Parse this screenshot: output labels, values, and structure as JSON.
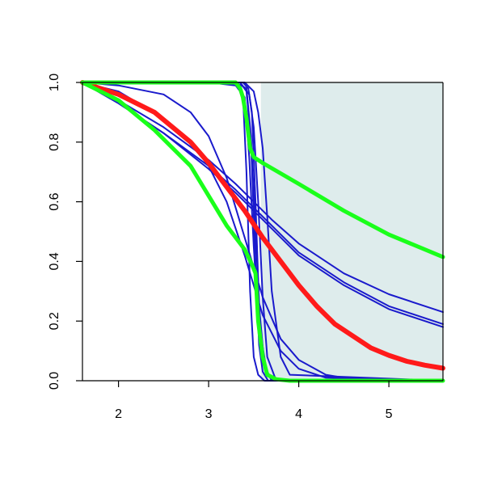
{
  "chart_data": {
    "type": "line",
    "title": "",
    "xlabel": "",
    "ylabel": "",
    "xlim": [
      1.6,
      5.6
    ],
    "ylim": [
      0,
      1
    ],
    "x_ticks": [
      2,
      3,
      4,
      5
    ],
    "y_ticks": [
      0.0,
      0.2,
      0.4,
      0.6,
      0.8,
      1.0
    ],
    "x_tick_labels": [
      "2",
      "3",
      "4",
      "5"
    ],
    "y_tick_labels": [
      "0.0",
      "0.2",
      "0.4",
      "0.6",
      "0.8",
      "1.0"
    ],
    "grid": false,
    "shaded_region": {
      "x_start": 3.58,
      "x_end": 5.6,
      "color": "#deecec"
    },
    "colors": {
      "blue": "#1a1acc",
      "red": "#ff1a1a",
      "green": "#1aff1a"
    },
    "series": [
      {
        "color": "blue",
        "x": [
          1.6,
          2.0,
          2.5,
          3.0,
          3.3,
          3.5,
          3.7,
          4.0,
          4.5,
          5.0,
          5.6
        ],
        "y": [
          1.0,
          0.94,
          0.85,
          0.74,
          0.66,
          0.6,
          0.54,
          0.46,
          0.36,
          0.29,
          0.23
        ]
      },
      {
        "color": "blue",
        "x": [
          1.6,
          2.0,
          2.5,
          3.0,
          3.3,
          3.5,
          3.7,
          4.0,
          4.5,
          5.0,
          5.6
        ],
        "y": [
          1.0,
          0.93,
          0.83,
          0.72,
          0.64,
          0.58,
          0.52,
          0.43,
          0.33,
          0.25,
          0.19
        ]
      },
      {
        "color": "blue",
        "x": [
          1.6,
          2.0,
          2.5,
          3.0,
          3.3,
          3.5,
          3.7,
          4.0,
          4.5,
          5.0,
          5.6
        ],
        "y": [
          1.0,
          0.93,
          0.83,
          0.71,
          0.63,
          0.57,
          0.51,
          0.42,
          0.32,
          0.24,
          0.18
        ]
      },
      {
        "color": "blue",
        "x": [
          1.6,
          2.0,
          2.5,
          2.8,
          3.0,
          3.2,
          3.4,
          3.6,
          3.8,
          4.0,
          4.3,
          4.6,
          5.6
        ],
        "y": [
          1.0,
          0.99,
          0.96,
          0.9,
          0.82,
          0.68,
          0.48,
          0.28,
          0.14,
          0.07,
          0.02,
          0.005,
          0.0
        ]
      },
      {
        "color": "blue",
        "x": [
          1.6,
          2.0,
          2.5,
          2.8,
          3.0,
          3.2,
          3.4,
          3.6,
          3.8,
          4.0,
          4.3,
          5.6
        ],
        "y": [
          1.0,
          0.97,
          0.88,
          0.8,
          0.72,
          0.6,
          0.42,
          0.22,
          0.1,
          0.04,
          0.01,
          0.0
        ]
      },
      {
        "color": "blue",
        "x": [
          1.6,
          3.0,
          3.3,
          3.4,
          3.45,
          3.5,
          3.55,
          3.6,
          3.7,
          5.6
        ],
        "y": [
          1.0,
          1.0,
          0.99,
          0.95,
          0.75,
          0.45,
          0.2,
          0.06,
          0.0,
          0.0
        ]
      },
      {
        "color": "blue",
        "x": [
          1.6,
          3.0,
          3.35,
          3.42,
          3.47,
          3.52,
          3.56,
          3.6,
          3.66,
          5.6
        ],
        "y": [
          1.0,
          1.0,
          1.0,
          0.97,
          0.8,
          0.4,
          0.12,
          0.03,
          0.0,
          0.0
        ]
      },
      {
        "color": "blue",
        "x": [
          1.6,
          3.0,
          3.3,
          3.38,
          3.42,
          3.46,
          3.5,
          3.55,
          3.62,
          5.6
        ],
        "y": [
          1.0,
          1.0,
          1.0,
          0.96,
          0.7,
          0.3,
          0.08,
          0.02,
          0.0,
          0.0
        ]
      },
      {
        "color": "blue",
        "x": [
          1.6,
          3.0,
          3.35,
          3.45,
          3.5,
          3.55,
          3.6,
          3.65,
          3.75,
          5.6
        ],
        "y": [
          1.0,
          1.0,
          1.0,
          0.96,
          0.85,
          0.6,
          0.28,
          0.08,
          0.0,
          0.0
        ]
      },
      {
        "color": "blue",
        "x": [
          1.6,
          3.0,
          3.4,
          3.5,
          3.55,
          3.6,
          3.65,
          3.7,
          3.8,
          3.9,
          5.6
        ],
        "y": [
          1.0,
          1.0,
          1.0,
          0.97,
          0.9,
          0.78,
          0.55,
          0.3,
          0.08,
          0.02,
          0.0
        ]
      },
      {
        "color": "blue",
        "x": [
          1.6,
          3.0,
          3.38,
          3.44,
          3.48,
          3.52,
          3.56,
          3.62,
          3.7,
          5.6
        ],
        "y": [
          1.0,
          1.0,
          1.0,
          0.98,
          0.9,
          0.6,
          0.25,
          0.05,
          0.0,
          0.0
        ]
      },
      {
        "color": "blue",
        "x": [
          1.6,
          3.0,
          3.3,
          3.42,
          3.47,
          3.52,
          3.58,
          3.65,
          3.72,
          5.6
        ],
        "y": [
          1.0,
          1.0,
          1.0,
          0.98,
          0.82,
          0.5,
          0.15,
          0.02,
          0.0,
          0.0
        ]
      },
      {
        "color": "red",
        "x": [
          1.6,
          2.0,
          2.4,
          2.8,
          3.0,
          3.2,
          3.4,
          3.6,
          3.8,
          4.0,
          4.2,
          4.4,
          4.6,
          4.8,
          5.0,
          5.2,
          5.4,
          5.6
        ],
        "y": [
          1.0,
          0.96,
          0.9,
          0.8,
          0.73,
          0.65,
          0.57,
          0.48,
          0.4,
          0.32,
          0.25,
          0.19,
          0.15,
          0.11,
          0.085,
          0.065,
          0.052,
          0.042
        ]
      },
      {
        "color": "green",
        "x": [
          1.6,
          2.0,
          2.4,
          2.8,
          3.0,
          3.2,
          3.4,
          3.48,
          3.52,
          3.55,
          3.6,
          3.65,
          3.75,
          3.9,
          5.6
        ],
        "y": [
          1.0,
          0.94,
          0.84,
          0.72,
          0.62,
          0.52,
          0.44,
          0.39,
          0.36,
          0.2,
          0.08,
          0.02,
          0.005,
          0.0,
          0.0
        ]
      },
      {
        "color": "green",
        "x": [
          1.6,
          3.0,
          3.3,
          3.35,
          3.38,
          3.42,
          3.46,
          3.5,
          3.6,
          4.0,
          4.5,
          5.0,
          5.6
        ],
        "y": [
          1.0,
          1.0,
          1.0,
          0.98,
          0.95,
          0.88,
          0.78,
          0.75,
          0.73,
          0.66,
          0.57,
          0.49,
          0.415
        ]
      }
    ]
  }
}
